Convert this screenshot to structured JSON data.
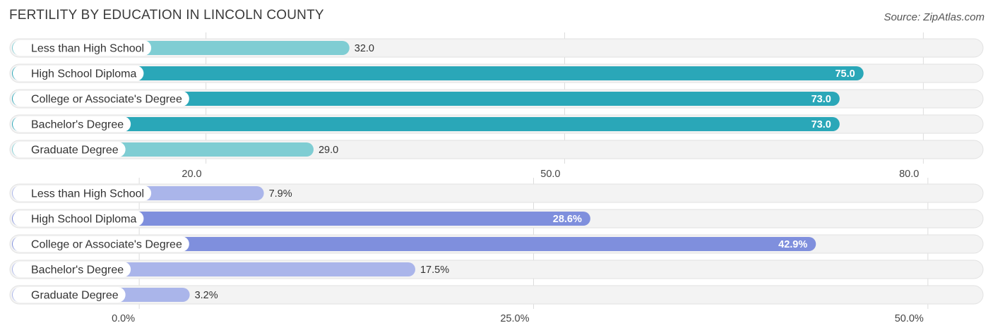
{
  "title": "FERTILITY BY EDUCATION IN LINCOLN COUNTY",
  "source": "Source: ZipAtlas.com",
  "chart_data": [
    {
      "type": "bar",
      "orientation": "horizontal",
      "categories": [
        "Less than High School",
        "High School Diploma",
        "College or Associate's Degree",
        "Bachelor's Degree",
        "Graduate Degree"
      ],
      "values": [
        32.0,
        75.0,
        73.0,
        73.0,
        29.0
      ],
      "value_labels": [
        "32.0",
        "75.0",
        "73.0",
        "73.0",
        "29.0"
      ],
      "xlim": [
        3.6,
        85.0
      ],
      "ticks": [
        20.0,
        50.0,
        80.0
      ],
      "tick_labels": [
        "20.0",
        "50.0",
        "80.0"
      ],
      "colors": {
        "strong": "#2aa7b8",
        "light": "#7fcdd3"
      },
      "grid": true
    },
    {
      "type": "bar",
      "orientation": "horizontal",
      "categories": [
        "Less than High School",
        "High School Diploma",
        "College or Associate's Degree",
        "Bachelor's Degree",
        "Graduate Degree"
      ],
      "values": [
        7.9,
        28.6,
        42.9,
        17.5,
        3.2
      ],
      "value_labels": [
        "7.9%",
        "28.6%",
        "42.9%",
        "17.5%",
        "3.2%"
      ],
      "xlim": [
        -8.2,
        53.5
      ],
      "ticks": [
        0.0,
        25.0,
        50.0
      ],
      "tick_labels": [
        "0.0%",
        "25.0%",
        "50.0%"
      ],
      "colors": {
        "strong": "#7f8fdd",
        "light": "#aab5ea"
      },
      "grid": true
    }
  ]
}
